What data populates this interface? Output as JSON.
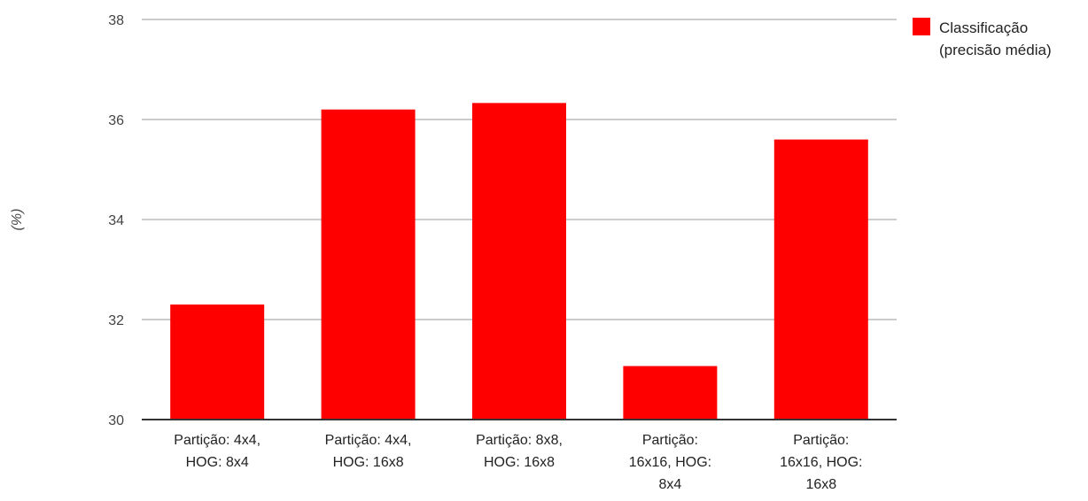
{
  "chart_data": {
    "type": "bar",
    "title": "",
    "xlabel": "",
    "ylabel": "(%)",
    "ylim": [
      30,
      38
    ],
    "yticks": [
      30,
      32,
      34,
      36,
      38
    ],
    "grid": true,
    "legend_position": "top-right",
    "categories": [
      [
        "Partição: 4x4,",
        "HOG: 8x4"
      ],
      [
        "Partição: 4x4,",
        "HOG: 16x8"
      ],
      [
        "Partição: 8x8,",
        "HOG: 16x8"
      ],
      [
        "Partição:",
        "16x16, HOG:",
        "8x4"
      ],
      [
        "Partição:",
        "16x16, HOG:",
        "16x8"
      ]
    ],
    "series": [
      {
        "name": [
          "Classificação",
          "(precisão média)"
        ],
        "color": "#ff0000",
        "values": [
          32.3,
          36.2,
          36.33,
          31.07,
          35.6
        ]
      }
    ]
  }
}
